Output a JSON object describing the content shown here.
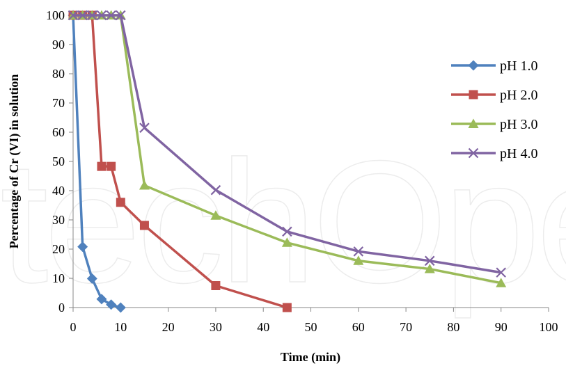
{
  "watermark_text": "techOpen",
  "chart_data": {
    "type": "line",
    "title": "",
    "xlabel": "Time (min)",
    "ylabel": "Percentage of Cr (VI) in solution",
    "xlim": [
      0,
      100
    ],
    "ylim": [
      0,
      100
    ],
    "xticks": [
      0,
      10,
      20,
      30,
      40,
      50,
      60,
      70,
      80,
      90,
      100
    ],
    "yticks": [
      0,
      10,
      20,
      30,
      40,
      50,
      60,
      70,
      80,
      90,
      100
    ],
    "grid": false,
    "legend_position": "right",
    "series": [
      {
        "name": "pH 1.0",
        "color": "#4f81bd",
        "marker": "diamond",
        "x": [
          0,
          2,
          4,
          6,
          8,
          10
        ],
        "y": [
          100,
          20.8,
          9.9,
          2.9,
          1.0,
          0
        ]
      },
      {
        "name": "pH 2.0",
        "color": "#c0504d",
        "marker": "square",
        "x": [
          0,
          2,
          4,
          6,
          8,
          10,
          15,
          30,
          45
        ],
        "y": [
          100,
          100,
          100,
          48.3,
          48.3,
          36,
          28.1,
          7.5,
          0
        ]
      },
      {
        "name": "pH 3.0",
        "color": "#9bbb59",
        "marker": "triangle",
        "x": [
          0,
          2,
          4,
          6,
          8,
          10,
          15,
          30,
          45,
          60,
          75,
          90
        ],
        "y": [
          100,
          100,
          100,
          100,
          100,
          100,
          41.8,
          31.5,
          22.2,
          16,
          13.2,
          8.4
        ]
      },
      {
        "name": "pH 4.0",
        "color": "#8064a2",
        "marker": "x",
        "x": [
          0,
          2,
          4,
          6,
          8,
          10,
          15,
          30,
          45,
          60,
          75,
          90
        ],
        "y": [
          100,
          100,
          100,
          100,
          100,
          100,
          61.5,
          40.2,
          26,
          19.2,
          16,
          12
        ]
      }
    ]
  }
}
